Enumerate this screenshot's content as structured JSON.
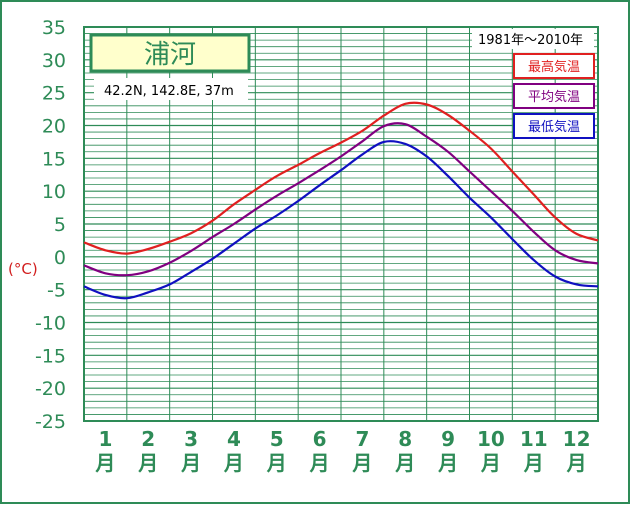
{
  "chart_data": {
    "type": "line",
    "title": "浦河",
    "coordinates": "42.2N,  142.8E,  37m",
    "period": "1981年〜2010年",
    "unit_label": "(°C)",
    "ylim": [
      -25,
      35
    ],
    "yticks": [
      35,
      30,
      25,
      20,
      15,
      10,
      5,
      0,
      -5,
      -10,
      -15,
      -20,
      -25
    ],
    "categories": [
      "1\n月",
      "2\n月",
      "3\n月",
      "4\n月",
      "5\n月",
      "6\n月",
      "7\n月",
      "8\n月",
      "9\n月",
      "10\n月",
      "11\n月",
      "12\n月"
    ],
    "month_numbers": [
      "1",
      "2",
      "3",
      "4",
      "5",
      "6",
      "7",
      "8",
      "9",
      "10",
      "11",
      "12"
    ],
    "month_suffix": "月",
    "grid": true,
    "legend_position": "top-right",
    "series": [
      {
        "name": "最高気温",
        "color": "#e02020",
        "x": [
          0,
          0.5,
          1,
          1.5,
          2,
          2.5,
          3,
          3.5,
          4,
          4.5,
          5,
          5.5,
          6,
          6.5,
          7,
          7.5,
          8,
          8.5,
          9,
          9.5,
          10,
          10.5,
          11,
          11.5,
          12
        ],
        "values": [
          2.2,
          1.0,
          0.5,
          1.2,
          2.3,
          3.6,
          5.5,
          8.0,
          10.2,
          12.3,
          14.0,
          15.8,
          17.4,
          19.2,
          21.5,
          23.3,
          23.2,
          21.6,
          19.2,
          16.5,
          13.0,
          9.5,
          6.0,
          3.5,
          2.5
        ]
      },
      {
        "name": "平均気温",
        "color": "#800080",
        "x": [
          0,
          0.5,
          1,
          1.5,
          2,
          2.5,
          3,
          3.5,
          4,
          4.5,
          5,
          5.5,
          6,
          6.5,
          7,
          7.5,
          8,
          8.5,
          9,
          9.5,
          10,
          10.5,
          11,
          11.5,
          12
        ],
        "values": [
          -1.3,
          -2.5,
          -2.8,
          -2.2,
          -0.9,
          0.9,
          3.0,
          5.0,
          7.2,
          9.3,
          11.2,
          13.2,
          15.3,
          17.6,
          19.9,
          20.2,
          18.3,
          16.0,
          13.0,
          10.0,
          7.0,
          3.8,
          1.0,
          -0.5,
          -1.0
        ]
      },
      {
        "name": "最低気温",
        "color": "#1010c0",
        "x": [
          0,
          0.5,
          1,
          1.5,
          2,
          2.5,
          3,
          3.5,
          4,
          4.5,
          5,
          5.5,
          6,
          6.5,
          7,
          7.5,
          8,
          8.5,
          9,
          9.5,
          10,
          10.5,
          11,
          11.5,
          12
        ],
        "values": [
          -4.5,
          -5.8,
          -6.3,
          -5.4,
          -4.2,
          -2.3,
          -0.3,
          2.0,
          4.3,
          6.3,
          8.5,
          10.9,
          13.2,
          15.6,
          17.5,
          17.2,
          15.3,
          12.3,
          9.0,
          6.0,
          2.7,
          -0.5,
          -3.0,
          -4.2,
          -4.5
        ]
      }
    ]
  }
}
